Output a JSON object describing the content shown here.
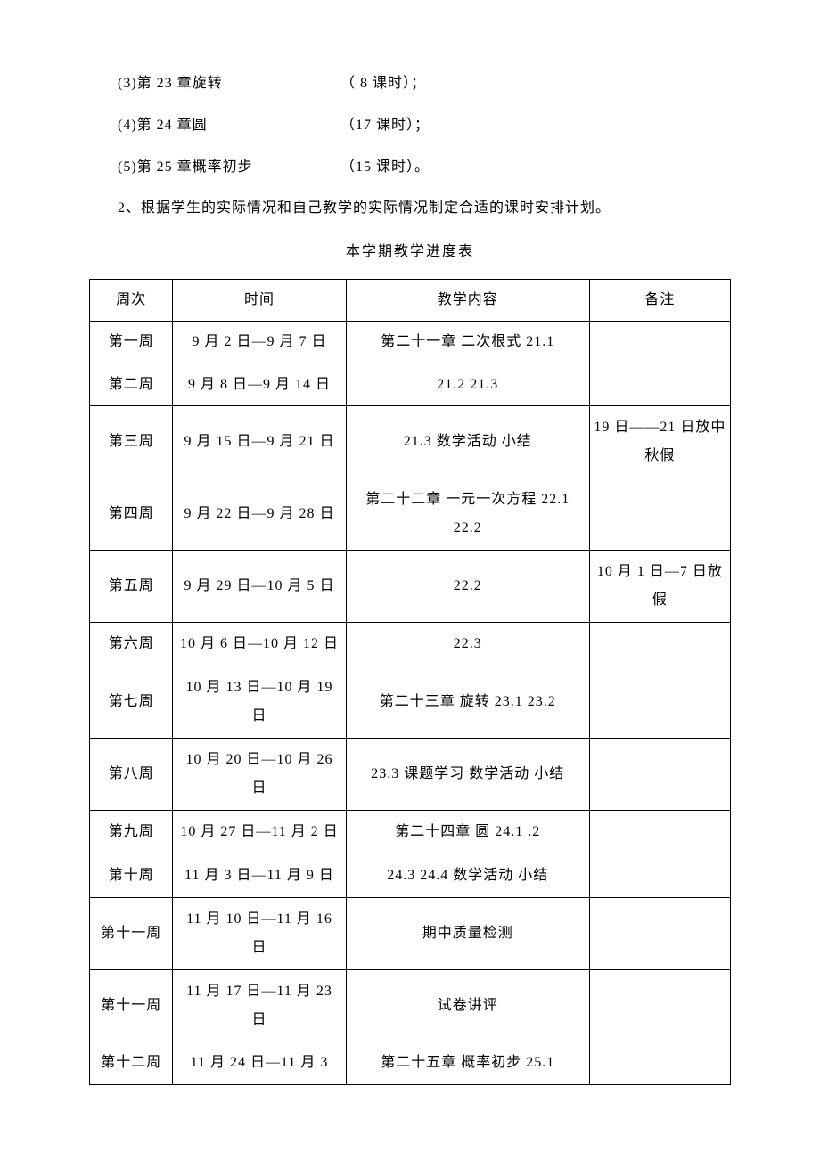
{
  "chapters": [
    {
      "label": "(3)第 23 章旋转",
      "hours": "（ 8 课时）；"
    },
    {
      "label": "(4)第 24 章圆",
      "hours": "（17 课时）；"
    },
    {
      "label": "(5)第 25 章概率初步",
      "hours": "（15 课时）。"
    }
  ],
  "note_line": "2、根据学生的实际情况和自己教学的实际情况制定合适的课时安排计划。",
  "table_title": "本学期教学进度表",
  "table": {
    "headers": {
      "week": "周次",
      "time": "时间",
      "content": "教学内容",
      "note": "备注"
    },
    "rows": [
      {
        "week": "第一周",
        "time": "9 月 2 日—9 月 7 日",
        "content": "第二十一章 二次根式 21.1",
        "note": ""
      },
      {
        "week": "第二周",
        "time": "9 月 8 日—9 月 14 日",
        "content": "21.2  21.3",
        "note": ""
      },
      {
        "week": "第三周",
        "time": "9 月 15 日—9 月 21 日",
        "content": "21.3 数学活动 小结",
        "note": "19 日——21 日放中秋假"
      },
      {
        "week": "第四周",
        "time": "9 月 22 日—9 月 28 日",
        "content": "第二十二章 一元一次方程 22.1 22.2",
        "note": ""
      },
      {
        "week": "第五周",
        "time": "9 月 29 日—10 月 5 日",
        "content": "22.2",
        "note": "10 月 1 日—7 日放假"
      },
      {
        "week": "第六周",
        "time": "10 月 6 日—10 月 12 日",
        "content": "22.3",
        "note": ""
      },
      {
        "week": "第七周",
        "time": "10 月 13 日—10 月 19 日",
        "content": "第二十三章 旋转 23.1  23.2",
        "note": ""
      },
      {
        "week": "第八周",
        "time": "10 月 20 日—10 月 26 日",
        "content": "23.3 课题学习 数学活动 小结",
        "note": ""
      },
      {
        "week": "第九周",
        "time": "10 月 27 日—11 月 2 日",
        "content": "第二十四章 圆 24.1    .2",
        "note": ""
      },
      {
        "week": "第十周",
        "time": "11 月 3 日—11 月 9 日",
        "content": "24.3 24.4 数学活动 小结",
        "note": ""
      },
      {
        "week": "第十一周",
        "time": "11 月 10 日—11 月 16 日",
        "content": "期中质量检测",
        "note": ""
      },
      {
        "week": "第十一周",
        "time": "11 月 17 日—11 月 23 日",
        "content": "试卷讲评",
        "note": ""
      },
      {
        "week": "第十二周",
        "time": "11 月 24 日—11 月 3",
        "content": "第二十五章 概率初步 25.1",
        "note": ""
      }
    ]
  }
}
